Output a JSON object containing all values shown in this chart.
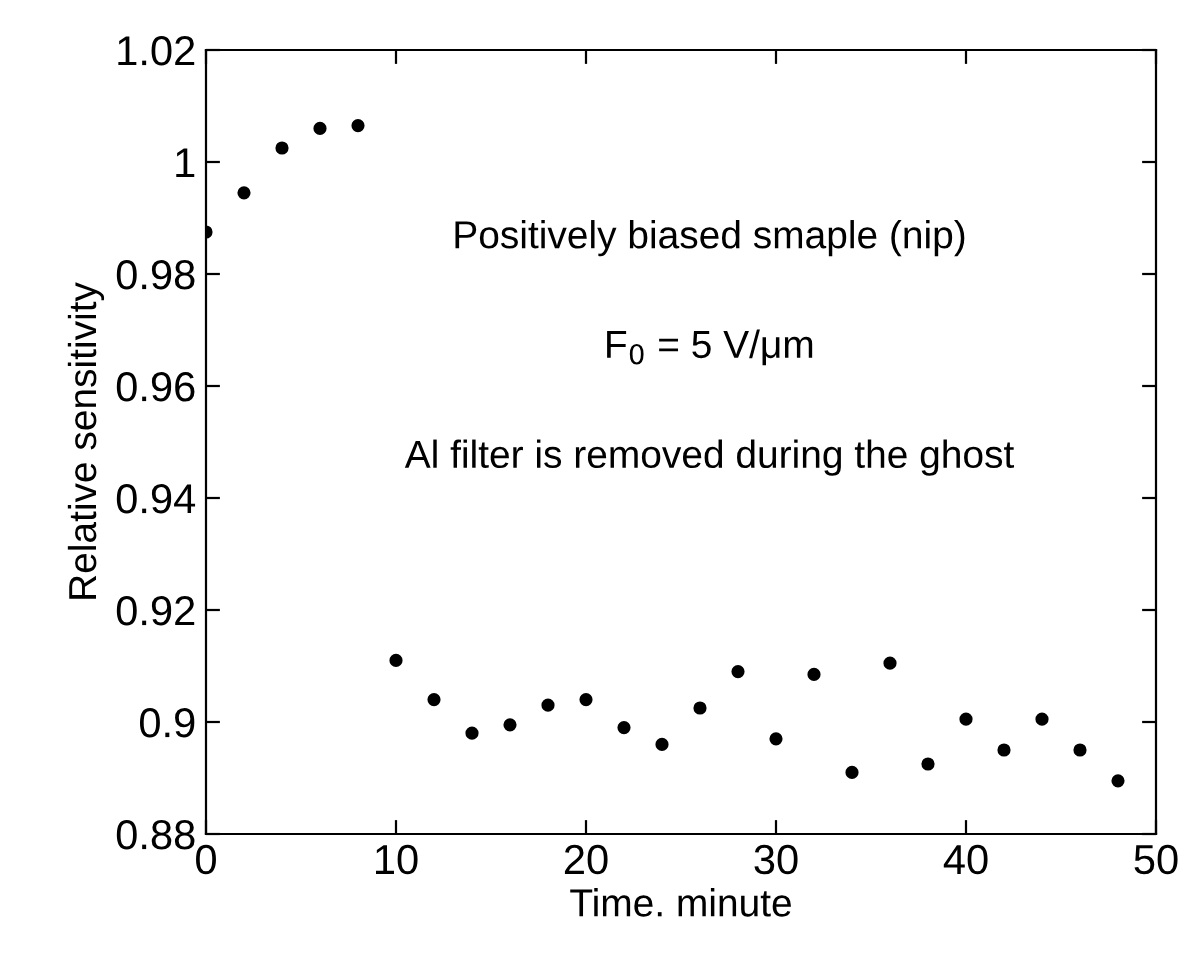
{
  "chart_data": {
    "type": "scatter",
    "xlabel": "Time. minute",
    "ylabel": "Relative sensitivity",
    "annotations": [
      "Positively biased smaple (nip)",
      "F$_{0}$ = 5 V/μm",
      "Al filter is removed during the ghost"
    ],
    "x": [
      0,
      2,
      4,
      6,
      8,
      10,
      12,
      14,
      16,
      18,
      20,
      22,
      24,
      26,
      28,
      30,
      32,
      34,
      36,
      38,
      40,
      42,
      44,
      46,
      48
    ],
    "series": [
      {
        "color": "#000000",
        "values": [
          0.9875,
          0.9945,
          1.0025,
          1.006,
          1.0065,
          0.911,
          0.904,
          0.898,
          0.8995,
          0.903,
          0.904,
          0.899,
          0.896,
          0.9025,
          0.909,
          0.897,
          0.9085,
          0.891,
          0.9105,
          0.8925,
          0.9005,
          0.895,
          0.9005,
          0.895,
          0.8895
        ]
      }
    ],
    "xlim": [
      0,
      50
    ],
    "xticks": [
      0,
      10,
      20,
      30,
      40,
      50
    ],
    "ylim": [
      0.88,
      1.02
    ],
    "yticks": [
      0.88,
      0.9,
      0.92,
      0.94,
      0.96,
      0.98,
      1,
      1.02
    ],
    "marker": "circle",
    "grid": false,
    "legend": false
  }
}
